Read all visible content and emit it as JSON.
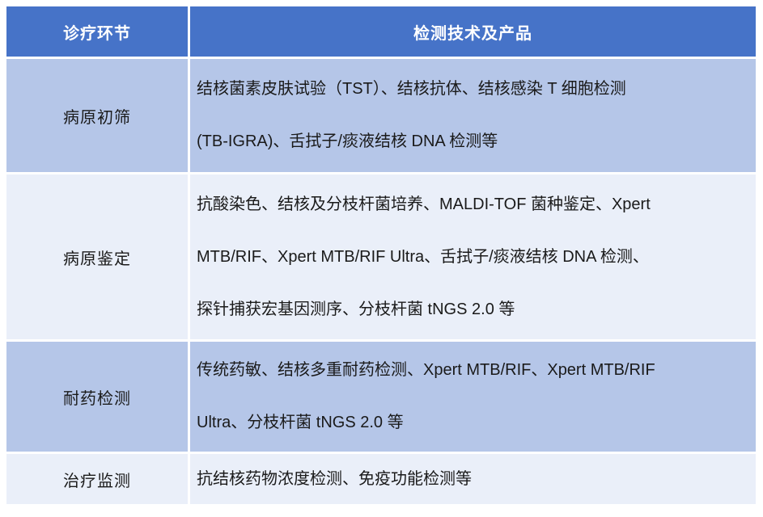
{
  "table": {
    "header": {
      "col1": "诊疗环节",
      "col2": "检测技术及产品"
    },
    "rows": [
      {
        "stage": "病原初筛",
        "tech_lines": [
          "结核菌素皮肤试验（TST）、结核抗体、结核感染 T 细胞检测",
          "(TB-IGRA)、舌拭子/痰液结核 DNA 检测等"
        ]
      },
      {
        "stage": "病原鉴定",
        "tech_lines": [
          "抗酸染色、结核及分枝杆菌培养、MALDI-TOF 菌种鉴定、Xpert",
          "MTB/RIF、Xpert MTB/RIF Ultra、舌拭子/痰液结核 DNA 检测、",
          "探针捕获宏基因测序、分枝杆菌 tNGS 2.0 等"
        ]
      },
      {
        "stage": "耐药检测",
        "tech_lines": [
          "传统药敏、结核多重耐药检测、Xpert MTB/RIF、Xpert MTB/RIF",
          "Ultra、分枝杆菌 tNGS 2.0 等"
        ]
      },
      {
        "stage": "治疗监测",
        "tech_lines": [
          "抗结核药物浓度检测、免疫功能检测等"
        ]
      }
    ],
    "colors": {
      "header_bg": "#4673C8",
      "header_text": "#FFFFFF",
      "row_odd_bg": "#B5C6E8",
      "row_even_bg": "#EAEFF9",
      "body_text": "#1A1A1A",
      "grid_gap": "#FFFFFF"
    }
  }
}
